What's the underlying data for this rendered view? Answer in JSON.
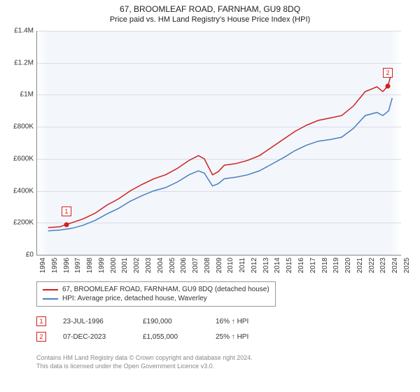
{
  "title": "67, BROOMLEAF ROAD, FARNHAM, GU9 8DQ",
  "subtitle": "Price paid vs. HM Land Registry's House Price Index (HPI)",
  "chart": {
    "type": "line",
    "background_color": "#f3f6fb",
    "grid_color": "#d9dde4",
    "y": {
      "min": 0,
      "max": 1400000,
      "ticks": [
        0,
        200000,
        400000,
        600000,
        800000,
        1000000,
        1200000,
        1400000
      ],
      "tick_labels": [
        "£0",
        "£200K",
        "£400K",
        "£600K",
        "£800K",
        "£1M",
        "£1.2M",
        "£1.4M"
      ],
      "label_fontsize": 10
    },
    "x": {
      "min": 1994,
      "max": 2025,
      "ticks": [
        1994,
        1995,
        1996,
        1997,
        1998,
        1999,
        2000,
        2001,
        2002,
        2003,
        2004,
        2005,
        2006,
        2007,
        2008,
        2009,
        2010,
        2011,
        2012,
        2013,
        2014,
        2015,
        2016,
        2017,
        2018,
        2019,
        2020,
        2021,
        2022,
        2023,
        2024,
        2025
      ],
      "tick_labels": [
        "1994",
        "1995",
        "1996",
        "1997",
        "1998",
        "1999",
        "2000",
        "2001",
        "2002",
        "2003",
        "2004",
        "2005",
        "2006",
        "2007",
        "2008",
        "2009",
        "2010",
        "2011",
        "2012",
        "2013",
        "2014",
        "2015",
        "2016",
        "2017",
        "2018",
        "2019",
        "2020",
        "2021",
        "2022",
        "2023",
        "2024",
        "2025"
      ],
      "label_fontsize": 10,
      "label_rotation": -90
    },
    "series": [
      {
        "name": "67, BROOMLEAF ROAD, FARNHAM, GU9 8DQ (detached house)",
        "color": "#d02020",
        "line_width": 1.5,
        "data": [
          [
            1995.0,
            170000
          ],
          [
            1996.0,
            175000
          ],
          [
            1996.56,
            190000
          ],
          [
            1997.0,
            200000
          ],
          [
            1998.0,
            225000
          ],
          [
            1999.0,
            260000
          ],
          [
            2000.0,
            310000
          ],
          [
            2001.0,
            350000
          ],
          [
            2002.0,
            400000
          ],
          [
            2003.0,
            440000
          ],
          [
            2004.0,
            475000
          ],
          [
            2005.0,
            500000
          ],
          [
            2006.0,
            540000
          ],
          [
            2007.0,
            590000
          ],
          [
            2007.8,
            620000
          ],
          [
            2008.3,
            600000
          ],
          [
            2009.0,
            500000
          ],
          [
            2009.5,
            520000
          ],
          [
            2010.0,
            560000
          ],
          [
            2011.0,
            570000
          ],
          [
            2012.0,
            590000
          ],
          [
            2013.0,
            620000
          ],
          [
            2014.0,
            670000
          ],
          [
            2015.0,
            720000
          ],
          [
            2016.0,
            770000
          ],
          [
            2017.0,
            810000
          ],
          [
            2018.0,
            840000
          ],
          [
            2019.0,
            855000
          ],
          [
            2020.0,
            870000
          ],
          [
            2021.0,
            930000
          ],
          [
            2022.0,
            1020000
          ],
          [
            2023.0,
            1050000
          ],
          [
            2023.5,
            1020000
          ],
          [
            2023.93,
            1055000
          ],
          [
            2024.3,
            1150000
          ]
        ]
      },
      {
        "name": "HPI: Average price, detached house, Waverley",
        "color": "#4a7fc4",
        "line_width": 1.5,
        "data": [
          [
            1995.0,
            150000
          ],
          [
            1996.0,
            155000
          ],
          [
            1997.0,
            165000
          ],
          [
            1998.0,
            185000
          ],
          [
            1999.0,
            215000
          ],
          [
            2000.0,
            255000
          ],
          [
            2001.0,
            290000
          ],
          [
            2002.0,
            335000
          ],
          [
            2003.0,
            370000
          ],
          [
            2004.0,
            400000
          ],
          [
            2005.0,
            420000
          ],
          [
            2006.0,
            455000
          ],
          [
            2007.0,
            500000
          ],
          [
            2007.8,
            525000
          ],
          [
            2008.3,
            510000
          ],
          [
            2009.0,
            430000
          ],
          [
            2009.5,
            445000
          ],
          [
            2010.0,
            475000
          ],
          [
            2011.0,
            485000
          ],
          [
            2012.0,
            500000
          ],
          [
            2013.0,
            525000
          ],
          [
            2014.0,
            565000
          ],
          [
            2015.0,
            605000
          ],
          [
            2016.0,
            650000
          ],
          [
            2017.0,
            685000
          ],
          [
            2018.0,
            710000
          ],
          [
            2019.0,
            720000
          ],
          [
            2020.0,
            735000
          ],
          [
            2021.0,
            790000
          ],
          [
            2022.0,
            870000
          ],
          [
            2023.0,
            890000
          ],
          [
            2023.5,
            870000
          ],
          [
            2024.0,
            900000
          ],
          [
            2024.3,
            980000
          ]
        ]
      }
    ],
    "markers": [
      {
        "label": "1",
        "x": 1996.56,
        "y": 190000,
        "dot_color": "#d02020"
      },
      {
        "label": "2",
        "x": 2023.93,
        "y": 1055000,
        "dot_color": "#d02020"
      }
    ]
  },
  "legend": {
    "items": [
      {
        "color": "#d02020",
        "label": "67, BROOMLEAF ROAD, FARNHAM, GU9 8DQ (detached house)"
      },
      {
        "color": "#4a7fc4",
        "label": "HPI: Average price, detached house, Waverley"
      }
    ]
  },
  "events": [
    {
      "num": "1",
      "date": "23-JUL-1996",
      "price": "£190,000",
      "hpi": "16% ↑ HPI"
    },
    {
      "num": "2",
      "date": "07-DEC-2023",
      "price": "£1,055,000",
      "hpi": "25% ↑ HPI"
    }
  ],
  "footer": {
    "line1": "Contains HM Land Registry data © Crown copyright and database right 2024.",
    "line2": "This data is licensed under the Open Government Licence v3.0."
  }
}
